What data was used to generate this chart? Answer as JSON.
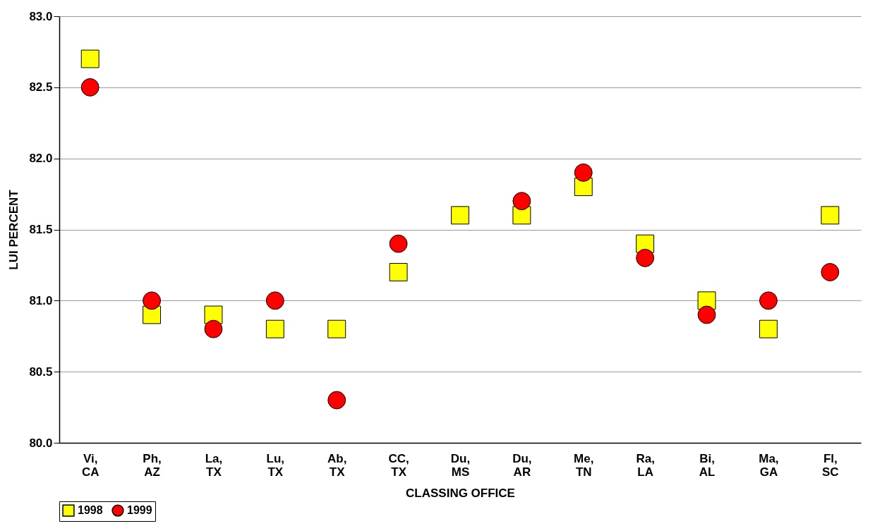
{
  "chart_data": {
    "type": "scatter",
    "xlabel": "CLASSING OFFICE",
    "ylabel": "LUI PERCENT",
    "categories": [
      "Vi, CA",
      "Ph, AZ",
      "La, TX",
      "Lu, TX",
      "Ab, TX",
      "CC, TX",
      "Du, MS",
      "Du, AR",
      "Me, TN",
      "Ra, LA",
      "Bi, AL",
      "Ma, GA",
      "Fl, SC"
    ],
    "series": [
      {
        "name": "1998",
        "color": "#ffff00",
        "marker": "square",
        "values": [
          82.7,
          80.9,
          80.9,
          80.8,
          80.8,
          81.2,
          81.6,
          81.6,
          81.8,
          81.4,
          81.0,
          80.8,
          81.6
        ]
      },
      {
        "name": "1999",
        "color": "#ff0000",
        "marker": "circle",
        "values": [
          82.5,
          81.0,
          80.8,
          81.0,
          80.3,
          81.4,
          null,
          81.7,
          81.9,
          81.3,
          80.9,
          81.0,
          81.2
        ]
      }
    ],
    "ylim": [
      80.0,
      83.0
    ],
    "yticks": [
      {
        "value": 80.0,
        "label": "80.0"
      },
      {
        "value": 80.5,
        "label": "80.5"
      },
      {
        "value": 81.0,
        "label": "81.0"
      },
      {
        "value": 81.5,
        "label": "81.5"
      },
      {
        "value": 82.0,
        "label": "82.0"
      },
      {
        "value": 82.5,
        "label": "82.5"
      },
      {
        "value": 83.0,
        "label": "83.0"
      }
    ],
    "grid": "y",
    "legend": "bottom"
  }
}
